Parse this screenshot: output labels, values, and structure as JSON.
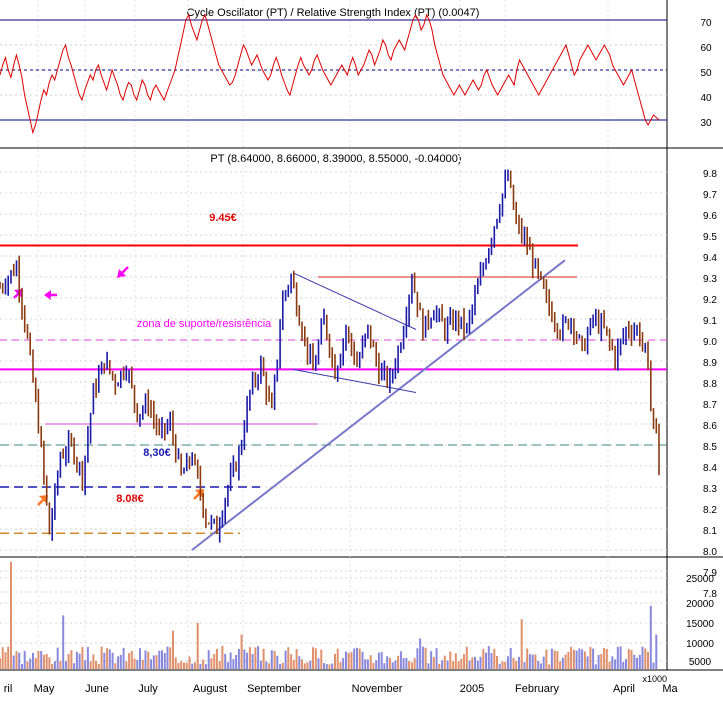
{
  "rsi_panel": {
    "title": "Cycle Oscillator (PT) / Relative Strength Index (PT) (0.0047)",
    "tick_labels": [
      "70",
      "60",
      "50",
      "40",
      "30"
    ]
  },
  "price_panel": {
    "title": "PT (8.64000, 8.66000, 8.39000, 8.55000, -0.04000)",
    "tick_labels": [
      "9.8",
      "9.7",
      "9.6",
      "9.5",
      "9.4",
      "9.3",
      "9.2",
      "9.1",
      "9.0",
      "8.9",
      "8.8",
      "8.7",
      "8.6",
      "8.5",
      "8.4",
      "8.3",
      "8.2",
      "8.1",
      "8.0",
      "7.9",
      "7.8"
    ],
    "annotations": {
      "resistance_label": "9.45€",
      "zone_label": "zona de suporte/resistência",
      "level_830_label": "8,30€",
      "level_808_label": "8.08€"
    }
  },
  "volume_panel": {
    "tick_labels": [
      "25000",
      "20000",
      "15000",
      "10000",
      "5000"
    ],
    "unit_label": "x1000"
  },
  "x_axis": {
    "labels": [
      "ril",
      "May",
      "June",
      "July",
      "August",
      "September",
      "November",
      "2005",
      "February",
      "April",
      "Ma"
    ]
  },
  "colors": {
    "rsi_line": "#dd0000",
    "reference_line": "#000080",
    "bar_up": "#1a1aa8",
    "bar_down": "#8b3a0f",
    "resistance": "#ff0000",
    "zone": "#ff00ff",
    "trendline": "#7777cc",
    "volume_up": "#8888dd",
    "volume_down": "#e0906a",
    "arrow_orange": "#ff7722"
  },
  "chart_data": [
    {
      "type": "line",
      "name": "rsi",
      "ylim": [
        22,
        78
      ],
      "reference_levels": [
        70,
        50,
        30
      ],
      "x_range": [
        0,
        240
      ],
      "values": [
        48,
        52,
        55,
        50,
        47,
        52,
        56,
        52,
        47,
        40,
        35,
        30,
        25,
        28,
        33,
        38,
        42,
        40,
        45,
        48,
        46,
        50,
        54,
        58,
        60,
        55,
        52,
        48,
        44,
        40,
        38,
        42,
        45,
        48,
        46,
        50,
        52,
        48,
        45,
        42,
        46,
        50,
        47,
        44,
        40,
        38,
        42,
        45,
        44,
        40,
        38,
        42,
        46,
        44,
        40,
        38,
        42,
        44,
        42,
        40,
        38,
        41,
        44,
        47,
        50,
        55,
        60,
        65,
        70,
        72,
        68,
        65,
        62,
        66,
        70,
        72,
        68,
        64,
        60,
        56,
        52,
        50,
        48,
        46,
        44,
        45,
        48,
        52,
        56,
        60,
        58,
        55,
        52,
        54,
        56,
        53,
        50,
        48,
        46,
        48,
        52,
        55,
        52,
        48,
        45,
        42,
        40,
        44,
        48,
        52,
        55,
        52,
        50,
        48,
        50,
        54,
        56,
        53,
        50,
        48,
        46,
        44,
        46,
        48,
        50,
        52,
        50,
        48,
        52,
        55,
        52,
        48,
        50,
        52,
        55,
        58,
        56,
        52,
        55,
        58,
        62,
        60,
        56,
        54,
        58,
        60,
        62,
        60,
        58,
        62,
        66,
        70,
        72,
        70,
        66,
        68,
        72,
        70,
        66,
        60,
        56,
        52,
        48,
        46,
        44,
        42,
        40,
        42,
        44,
        42,
        40,
        42,
        44,
        46,
        44,
        42,
        44,
        48,
        50,
        47,
        44,
        42,
        40,
        42,
        44,
        46,
        48,
        46,
        44,
        50,
        54,
        52,
        50,
        48,
        46,
        44,
        42,
        40,
        42,
        44,
        46,
        48,
        50,
        52,
        54,
        56,
        58,
        60,
        56,
        52,
        48,
        50,
        54,
        56,
        58,
        60,
        58,
        56,
        54,
        56,
        58,
        60,
        58,
        56,
        52,
        50,
        48,
        46,
        44,
        46,
        48,
        50,
        46,
        42,
        38,
        34,
        30,
        28,
        30,
        32,
        31,
        30
      ]
    },
    {
      "type": "candlestick",
      "name": "price",
      "ylim": [
        7.75,
        9.85
      ],
      "x_range": [
        0,
        240
      ],
      "pivots": [
        [
          0,
          9.25
        ],
        [
          6,
          9.35
        ],
        [
          10,
          9.0
        ],
        [
          14,
          8.6
        ],
        [
          18,
          8.08
        ],
        [
          22,
          8.45
        ],
        [
          26,
          8.5
        ],
        [
          30,
          8.35
        ],
        [
          34,
          8.75
        ],
        [
          38,
          8.9
        ],
        [
          42,
          8.8
        ],
        [
          46,
          8.88
        ],
        [
          50,
          8.65
        ],
        [
          54,
          8.7
        ],
        [
          58,
          8.55
        ],
        [
          62,
          8.6
        ],
        [
          66,
          8.35
        ],
        [
          70,
          8.45
        ],
        [
          75,
          8.15
        ],
        [
          79,
          8.1
        ],
        [
          83,
          8.3
        ],
        [
          87,
          8.45
        ],
        [
          91,
          8.75
        ],
        [
          95,
          8.88
        ],
        [
          99,
          8.65
        ],
        [
          103,
          9.2
        ],
        [
          106,
          9.3
        ],
        [
          110,
          9.05
        ],
        [
          114,
          8.85
        ],
        [
          118,
          9.1
        ],
        [
          122,
          8.85
        ],
        [
          126,
          9.05
        ],
        [
          130,
          8.88
        ],
        [
          134,
          9.05
        ],
        [
          138,
          8.85
        ],
        [
          142,
          8.8
        ],
        [
          146,
          9.0
        ],
        [
          150,
          9.3
        ],
        [
          154,
          9.05
        ],
        [
          158,
          9.15
        ],
        [
          162,
          9.05
        ],
        [
          166,
          9.1
        ],
        [
          170,
          9.05
        ],
        [
          174,
          9.25
        ],
        [
          178,
          9.45
        ],
        [
          182,
          9.65
        ],
        [
          185,
          9.78
        ],
        [
          188,
          9.55
        ],
        [
          192,
          9.45
        ],
        [
          196,
          9.3
        ],
        [
          200,
          9.15
        ],
        [
          204,
          9.05
        ],
        [
          208,
          9.1
        ],
        [
          212,
          8.95
        ],
        [
          216,
          9.1
        ],
        [
          220,
          9.05
        ],
        [
          224,
          8.92
        ],
        [
          228,
          9.05
        ],
        [
          232,
          9.05
        ],
        [
          235,
          8.95
        ],
        [
          237,
          8.7
        ],
        [
          239,
          8.55
        ],
        [
          240,
          8.4
        ]
      ]
    },
    {
      "type": "bar",
      "name": "volume",
      "ylim": [
        0,
        29000
      ],
      "count": 240,
      "spikes": [
        [
          4,
          28000
        ],
        [
          23,
          14000
        ],
        [
          63,
          10000
        ],
        [
          72,
          12000
        ],
        [
          88,
          9000
        ],
        [
          153,
          8000
        ],
        [
          190,
          13000
        ],
        [
          237,
          16500
        ],
        [
          239,
          9000
        ]
      ]
    }
  ]
}
